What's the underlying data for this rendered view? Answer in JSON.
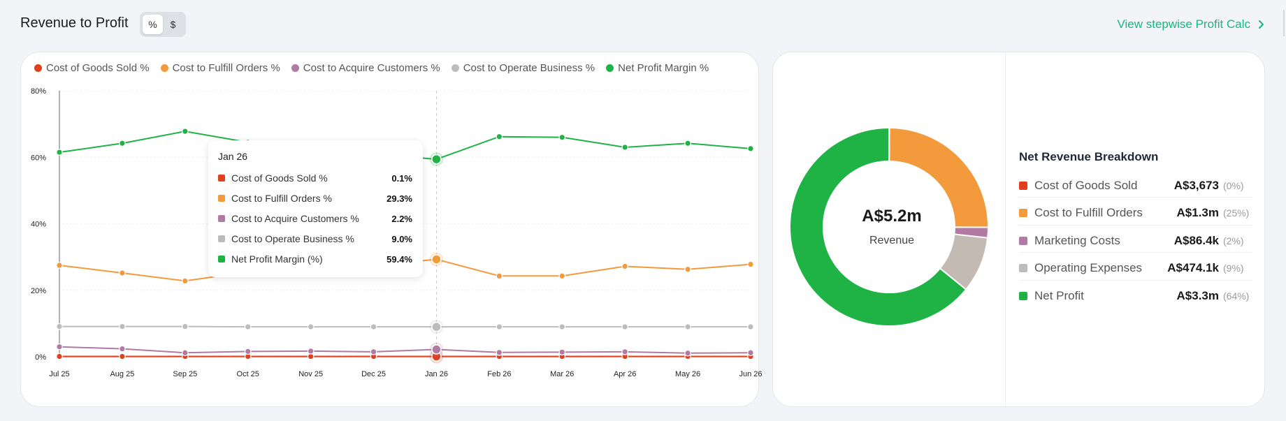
{
  "header": {
    "title": "Revenue to Profit",
    "toggle": {
      "options": [
        "%",
        "$"
      ],
      "active": "%"
    },
    "link_label": "View stepwise Profit Calc"
  },
  "colors": {
    "cogs": "#e0401c",
    "fulfill": "#f39a3c",
    "acquire": "#b07aa3",
    "operate": "#bcbcbc",
    "net": "#1fb346",
    "accent": "#17b67e"
  },
  "chart_data": {
    "type": "line",
    "x": [
      "Jul 25",
      "Aug 25",
      "Sep 25",
      "Oct 25",
      "Nov 25",
      "Dec 25",
      "Jan 26",
      "Feb 26",
      "Mar 26",
      "Apr 26",
      "May 26",
      "Jun 26"
    ],
    "ylim": [
      0,
      80
    ],
    "yticks": [
      "0%",
      "20%",
      "40%",
      "60%",
      "80%"
    ],
    "grid": true,
    "legend_position": "top-left",
    "series": [
      {
        "name": "Cost of Goods Sold %",
        "color": "#e0401c",
        "values": [
          0.1,
          0.1,
          0.1,
          0.1,
          0.1,
          0.1,
          0.1,
          0.1,
          0.1,
          0.1,
          0.1,
          0.1
        ]
      },
      {
        "name": "Cost to Fulfill Orders %",
        "color": "#f39a3c",
        "values": [
          27.5,
          25.2,
          22.8,
          25.5,
          26.5,
          27.5,
          29.3,
          24.3,
          24.3,
          27.2,
          26.3,
          27.8
        ]
      },
      {
        "name": "Cost to Acquire Customers %",
        "color": "#b07aa3",
        "values": [
          3.0,
          2.4,
          1.2,
          1.6,
          1.7,
          1.5,
          2.2,
          1.3,
          1.4,
          1.5,
          1.1,
          1.2
        ]
      },
      {
        "name": "Cost to Operate Business %",
        "color": "#bcbcbc",
        "values": [
          9.1,
          9.1,
          9.1,
          9.0,
          9.0,
          9.0,
          9.0,
          9.0,
          9.0,
          9.0,
          9.0,
          9.0
        ]
      },
      {
        "name": "Net Profit Margin %",
        "color": "#1fb346",
        "values": [
          61.5,
          64.2,
          67.8,
          64.5,
          62.0,
          61.0,
          59.4,
          66.2,
          66.0,
          63.0,
          64.2,
          62.6
        ]
      }
    ],
    "hover_index": 6
  },
  "tooltip": {
    "date": "Jan 26",
    "rows": [
      {
        "label": "Cost of Goods Sold %",
        "value": "0.1%",
        "color": "#e0401c"
      },
      {
        "label": "Cost to Fulfill Orders %",
        "value": "29.3%",
        "color": "#f39a3c"
      },
      {
        "label": "Cost to Acquire Customers %",
        "value": "2.2%",
        "color": "#b07aa3"
      },
      {
        "label": "Cost to Operate Business %",
        "value": "9.0%",
        "color": "#bcbcbc"
      },
      {
        "label": "Net Profit Margin (%)",
        "value": "59.4%",
        "color": "#1fb346"
      }
    ]
  },
  "donut": {
    "center_value": "A$5.2m",
    "center_label": "Revenue",
    "slices": [
      {
        "name": "Cost of Goods Sold",
        "value": 0.07,
        "color": "#e0401c"
      },
      {
        "name": "Cost to Fulfill Orders",
        "value": 25,
        "color": "#f39a3c"
      },
      {
        "name": "Marketing Costs",
        "value": 1.7,
        "color": "#b07aa3"
      },
      {
        "name": "Operating Expenses",
        "value": 9.1,
        "color": "#c2bab3"
      },
      {
        "name": "Net Profit",
        "value": 64.13,
        "color": "#1fb346"
      }
    ]
  },
  "breakdown": {
    "title": "Net Revenue Breakdown",
    "rows": [
      {
        "label": "Cost of Goods Sold",
        "amount": "A$3,673",
        "pct": "(0%)",
        "color": "#e0401c"
      },
      {
        "label": "Cost to Fulfill Orders",
        "amount": "A$1.3m",
        "pct": "(25%)",
        "color": "#f39a3c"
      },
      {
        "label": "Marketing Costs",
        "amount": "A$86.4k",
        "pct": "(2%)",
        "color": "#b07aa3"
      },
      {
        "label": "Operating Expenses",
        "amount": "A$474.1k",
        "pct": "(9%)",
        "color": "#bcbcbc"
      },
      {
        "label": "Net Profit",
        "amount": "A$3.3m",
        "pct": "(64%)",
        "color": "#1fb346"
      }
    ]
  }
}
